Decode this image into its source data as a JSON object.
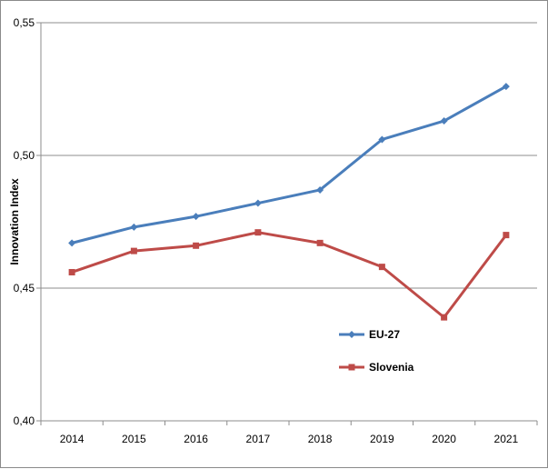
{
  "chart_data": {
    "type": "line",
    "x": [
      "2014",
      "2015",
      "2016",
      "2017",
      "2018",
      "2019",
      "2020",
      "2021"
    ],
    "series": [
      {
        "name": "EU-27",
        "values": [
          0.467,
          0.473,
          0.477,
          0.482,
          0.487,
          0.506,
          0.513,
          0.526
        ],
        "color": "#4a7ebb",
        "marker": "diamond"
      },
      {
        "name": "Slovenia",
        "values": [
          0.456,
          0.464,
          0.466,
          0.471,
          0.467,
          0.458,
          0.439,
          0.47
        ],
        "color": "#be4b48",
        "marker": "square"
      }
    ],
    "ylabel": "Innovation Index",
    "ylim": [
      0.4,
      0.55
    ],
    "yticks": [
      "0,40",
      "0,45",
      "0,50",
      "0,55"
    ],
    "grid": "horizontal major gridlines",
    "legend_position": "inside lower-right"
  }
}
